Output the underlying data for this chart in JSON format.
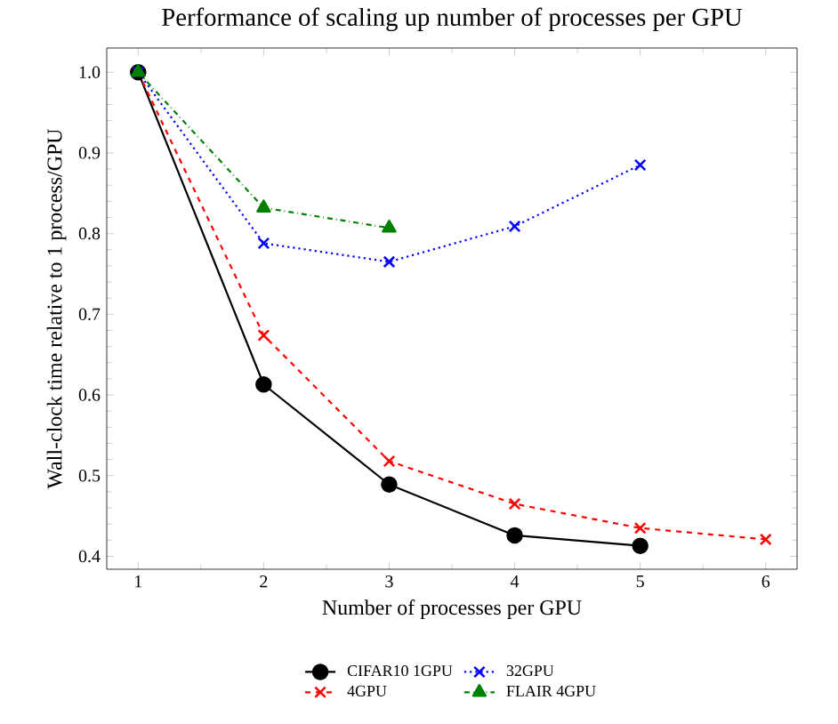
{
  "chart_data": {
    "type": "line",
    "title": "Performance of scaling up number of processes per GPU",
    "xlabel": "Number of processes per GPU",
    "ylabel": "Wall-clock time relative to 1 process/GPU",
    "xlim": [
      0.75,
      6.25
    ],
    "ylim": [
      0.384,
      1.03
    ],
    "xticks": [
      1,
      2,
      3,
      4,
      5,
      6
    ],
    "yticks": [
      {
        "value": 0.4,
        "label": "0.4"
      },
      {
        "value": 0.5,
        "label": "0.5"
      },
      {
        "value": 0.6,
        "label": "0.6"
      },
      {
        "value": 0.7,
        "label": "0.7"
      },
      {
        "value": 0.8,
        "label": "0.8"
      },
      {
        "value": 0.9,
        "label": "0.9"
      },
      {
        "value": 1.0,
        "label": "1.0"
      }
    ],
    "legend": "bottom",
    "grid": false,
    "series": [
      {
        "name": "CIFAR10 1GPU",
        "color": "#000000",
        "marker": "circle",
        "line_style": "solid",
        "x": [
          1,
          2,
          3,
          4,
          5
        ],
        "values": [
          1.0,
          0.613,
          0.489,
          0.426,
          0.413
        ]
      },
      {
        "name": "4GPU",
        "color": "#ff0000",
        "marker": "cross",
        "line_style": "dashed",
        "x": [
          1,
          2,
          3,
          4,
          5,
          6
        ],
        "values": [
          1.0,
          0.674,
          0.518,
          0.465,
          0.435,
          0.421
        ]
      },
      {
        "name": "32GPU",
        "color": "#0000ff",
        "marker": "cross",
        "line_style": "dotted",
        "x": [
          1,
          2,
          3,
          4,
          5
        ],
        "values": [
          1.0,
          0.788,
          0.765,
          0.809,
          0.885
        ]
      },
      {
        "name": "FLAIR 4GPU",
        "color": "#008000",
        "marker": "triangle",
        "line_style": "dashdotted",
        "x": [
          1,
          2,
          3
        ],
        "values": [
          1.0,
          0.832,
          0.807
        ]
      }
    ]
  }
}
